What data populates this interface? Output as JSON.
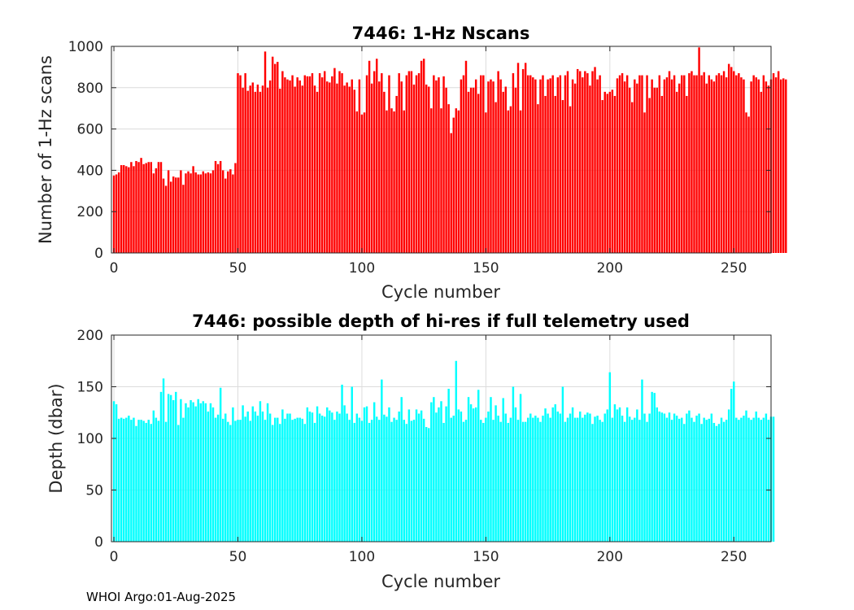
{
  "chart_data": [
    {
      "type": "bar",
      "title": "7446: 1-Hz Nscans",
      "xlabel": "Cycle number",
      "ylabel": "Number of 1-Hz scans",
      "color": "#ff0000",
      "xlim": [
        -1,
        265
      ],
      "ylim": [
        0,
        1000
      ],
      "xticks": [
        0,
        50,
        100,
        150,
        200,
        250
      ],
      "yticks": [
        0,
        200,
        400,
        600,
        800,
        1000
      ],
      "grid": true,
      "x_start": 0,
      "values": [
        375,
        380,
        390,
        425,
        425,
        420,
        415,
        440,
        420,
        445,
        440,
        460,
        430,
        435,
        440,
        440,
        385,
        410,
        440,
        440,
        360,
        325,
        400,
        345,
        370,
        365,
        365,
        400,
        330,
        385,
        395,
        385,
        420,
        390,
        380,
        380,
        395,
        385,
        390,
        385,
        400,
        445,
        430,
        445,
        400,
        360,
        395,
        405,
        380,
        435,
        870,
        860,
        800,
        870,
        785,
        810,
        825,
        780,
        815,
        780,
        810,
        975,
        800,
        835,
        950,
        915,
        925,
        795,
        880,
        850,
        840,
        835,
        860,
        805,
        850,
        835,
        810,
        860,
        855,
        855,
        870,
        810,
        780,
        870,
        850,
        880,
        830,
        825,
        855,
        895,
        820,
        880,
        870,
        810,
        825,
        805,
        840,
        790,
        685,
        840,
        670,
        680,
        860,
        930,
        820,
        880,
        940,
        830,
        870,
        780,
        690,
        860,
        700,
        685,
        760,
        870,
        830,
        690,
        860,
        880,
        880,
        815,
        860,
        870,
        930,
        940,
        815,
        805,
        700,
        860,
        835,
        850,
        700,
        855,
        800,
        720,
        580,
        655,
        700,
        690,
        840,
        860,
        930,
        780,
        800,
        800,
        840,
        770,
        860,
        860,
        680,
        830,
        840,
        830,
        730,
        880,
        840,
        780,
        805,
        690,
        710,
        870,
        800,
        920,
        690,
        890,
        920,
        860,
        860,
        850,
        840,
        720,
        840,
        860,
        760,
        840,
        845,
        860,
        760,
        850,
        860,
        740,
        860,
        880,
        710,
        840,
        820,
        890,
        880,
        850,
        880,
        870,
        810,
        880,
        900,
        840,
        860,
        740,
        780,
        770,
        780,
        790,
        760,
        845,
        860,
        870,
        830,
        860,
        800,
        730,
        840,
        820,
        860,
        860,
        680,
        860,
        750,
        840,
        800,
        800,
        860,
        760,
        840,
        850,
        880,
        840,
        860,
        780,
        820,
        860,
        860,
        760,
        870,
        880,
        860,
        860,
        995,
        860,
        875,
        820,
        860,
        840,
        830,
        860,
        870,
        860,
        880,
        850,
        915,
        900,
        880,
        860,
        870,
        850,
        840,
        680,
        660,
        830,
        860,
        850,
        840,
        780,
        860,
        830,
        810,
        840,
        870,
        850,
        880,
        840,
        845,
        840
      ]
    },
    {
      "type": "bar",
      "title": "7446: possible depth of hi-res if full telemetry used",
      "xlabel": "Cycle number",
      "ylabel": "Depth (dbar)",
      "color": "#00ffff",
      "xlim": [
        -1,
        265
      ],
      "ylim": [
        0,
        200
      ],
      "xticks": [
        0,
        50,
        100,
        150,
        200,
        250
      ],
      "yticks": [
        0,
        50,
        100,
        150,
        200
      ],
      "grid": true,
      "x_start": 0,
      "values": [
        136,
        133,
        119,
        120,
        119,
        120,
        122,
        118,
        120,
        112,
        118,
        118,
        117,
        115,
        118,
        114,
        127,
        120,
        117,
        145,
        158,
        116,
        143,
        142,
        137,
        145,
        113,
        138,
        120,
        134,
        130,
        137,
        135,
        131,
        138,
        134,
        136,
        134,
        126,
        134,
        130,
        120,
        123,
        149,
        119,
        124,
        116,
        113,
        130,
        117,
        118,
        118,
        132,
        121,
        126,
        117,
        131,
        126,
        122,
        136,
        126,
        118,
        134,
        124,
        113,
        120,
        120,
        114,
        128,
        119,
        124,
        124,
        118,
        119,
        120,
        120,
        119,
        114,
        130,
        126,
        125,
        115,
        131,
        124,
        122,
        121,
        130,
        127,
        125,
        118,
        126,
        124,
        152,
        132,
        124,
        118,
        150,
        115,
        124,
        120,
        117,
        130,
        131,
        115,
        118,
        135,
        121,
        118,
        157,
        123,
        121,
        130,
        116,
        120,
        118,
        126,
        140,
        118,
        114,
        128,
        117,
        118,
        128,
        124,
        127,
        119,
        111,
        110,
        135,
        140,
        125,
        130,
        136,
        115,
        131,
        148,
        120,
        122,
        175,
        128,
        126,
        116,
        118,
        140,
        133,
        129,
        130,
        147,
        118,
        115,
        120,
        126,
        140,
        118,
        132,
        122,
        116,
        139,
        124,
        115,
        120,
        150,
        130,
        118,
        143,
        116,
        116,
        120,
        124,
        120,
        122,
        120,
        116,
        122,
        129,
        124,
        120,
        130,
        133,
        126,
        124,
        150,
        116,
        120,
        124,
        130,
        120,
        120,
        126,
        120,
        123,
        125,
        124,
        114,
        121,
        122,
        118,
        116,
        124,
        128,
        164,
        120,
        133,
        128,
        130,
        122,
        116,
        130,
        121,
        118,
        120,
        128,
        118,
        157,
        124,
        116,
        124,
        145,
        144,
        130,
        126,
        125,
        124,
        120,
        125,
        118,
        124,
        122,
        119,
        120,
        114,
        124,
        127,
        120,
        116,
        122,
        124,
        114,
        120,
        118,
        119,
        124,
        115,
        112,
        114,
        120,
        116,
        118,
        128,
        148,
        155,
        120,
        118,
        120,
        122,
        127,
        120,
        118,
        120,
        126,
        120,
        118,
        120,
        124,
        118,
        121,
        121
      ]
    }
  ],
  "footer": {
    "text": "WHOI Argo:01-Aug-2025"
  }
}
